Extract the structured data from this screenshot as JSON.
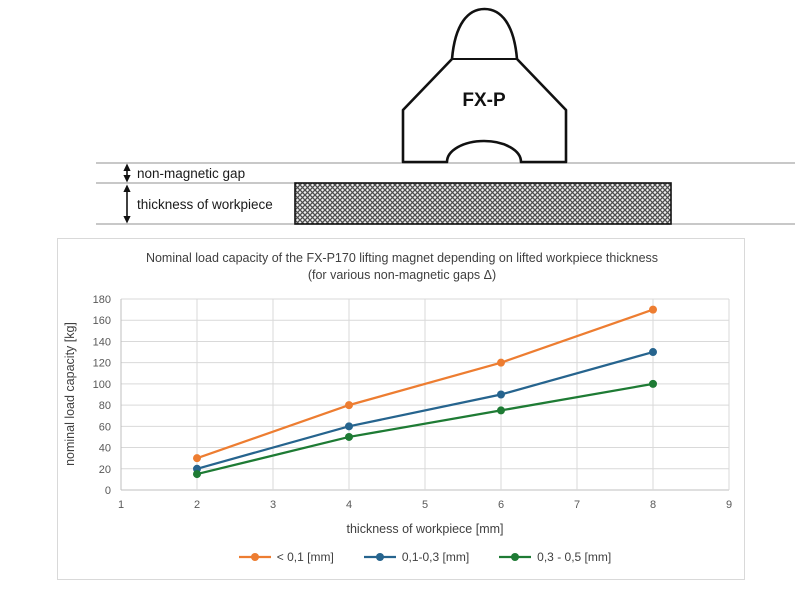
{
  "diagram": {
    "magnet_label": "FX-P",
    "gap_label": "non-magnetic gap",
    "workpiece_label": "thickness of workpiece"
  },
  "chart": {
    "title_line1": "Nominal load capacity of the FX-P170 lifting magnet depending on lifted workpiece thickness",
    "title_line2": "(for various non-magnetic gaps Δ)",
    "ylabel": "nominal load capacity [kg]",
    "xlabel": "thickness of workpiece [mm]"
  },
  "chart_data": {
    "type": "line",
    "title": "Nominal load capacity of the FX-P170 lifting magnet depending on lifted workpiece thickness (for various non-magnetic gaps Δ)",
    "xlabel": "thickness of workpiece [mm]",
    "ylabel": "nominal load capacity [kg]",
    "x": [
      2,
      4,
      6,
      8
    ],
    "series": [
      {
        "name": "< 0,1 [mm]",
        "color": "#ED7D31",
        "values": [
          30,
          80,
          120,
          170
        ]
      },
      {
        "name": "0,1-0,3 [mm]",
        "color": "#26648E",
        "values": [
          20,
          60,
          90,
          130
        ]
      },
      {
        "name": "0,3 - 0,5 [mm]",
        "color": "#1E7B34",
        "values": [
          15,
          50,
          75,
          100
        ]
      }
    ],
    "xlim": [
      1,
      9
    ],
    "ylim": [
      0,
      180
    ],
    "xticks": [
      1,
      2,
      3,
      4,
      5,
      6,
      7,
      8,
      9
    ],
    "yticks": [
      0,
      20,
      40,
      60,
      80,
      100,
      120,
      140,
      160,
      180
    ],
    "grid": true,
    "legend_position": "bottom",
    "grid_color": "#d9d9d9",
    "axis_color": "#bfbfbf"
  }
}
